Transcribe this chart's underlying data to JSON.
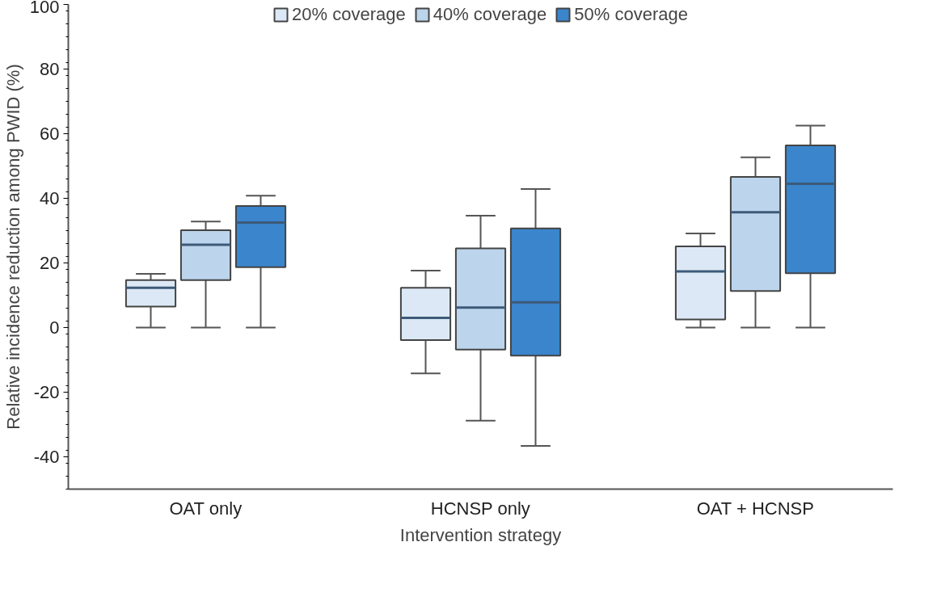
{
  "chart_data": {
    "type": "box",
    "xlabel": "Intervention strategy",
    "ylabel": "Relative incidence reduction among PWID (%)",
    "categories": [
      "OAT only",
      "HCNSP only",
      "OAT + HCNSP"
    ],
    "ylim": [
      -50,
      100
    ],
    "yticks": [
      -40,
      -20,
      0,
      20,
      40,
      60,
      80,
      100
    ],
    "grid": false,
    "legend": "top",
    "series": [
      {
        "name": "20% coverage",
        "color": "#dce8f5",
        "boxes": [
          {
            "low": 0,
            "q1": 6.5,
            "median": 12.3,
            "q3": 14.7,
            "high": 16.6
          },
          {
            "low": -14.2,
            "q1": -3.9,
            "median": 3.0,
            "q3": 12.3,
            "high": 17.6
          },
          {
            "low": 0,
            "q1": 2.5,
            "median": 17.4,
            "q3": 25.1,
            "high": 29.1
          }
        ]
      },
      {
        "name": "40% coverage",
        "color": "#bcd5ec",
        "boxes": [
          {
            "low": 0,
            "q1": 14.7,
            "median": 25.6,
            "q3": 30.1,
            "high": 32.8
          },
          {
            "low": -28.8,
            "q1": -6.8,
            "median": 6.2,
            "q3": 24.5,
            "high": 34.6
          },
          {
            "low": 0,
            "q1": 11.3,
            "median": 35.7,
            "q3": 46.6,
            "high": 52.7
          }
        ]
      },
      {
        "name": "50% coverage",
        "color": "#3a85cc",
        "boxes": [
          {
            "low": 0,
            "q1": 18.7,
            "median": 32.5,
            "q3": 37.6,
            "high": 40.8
          },
          {
            "low": -36.6,
            "q1": -8.7,
            "median": 7.8,
            "q3": 30.7,
            "high": 42.9
          },
          {
            "low": 0,
            "q1": 16.8,
            "median": 44.5,
            "q3": 56.4,
            "high": 62.5
          }
        ]
      }
    ]
  }
}
